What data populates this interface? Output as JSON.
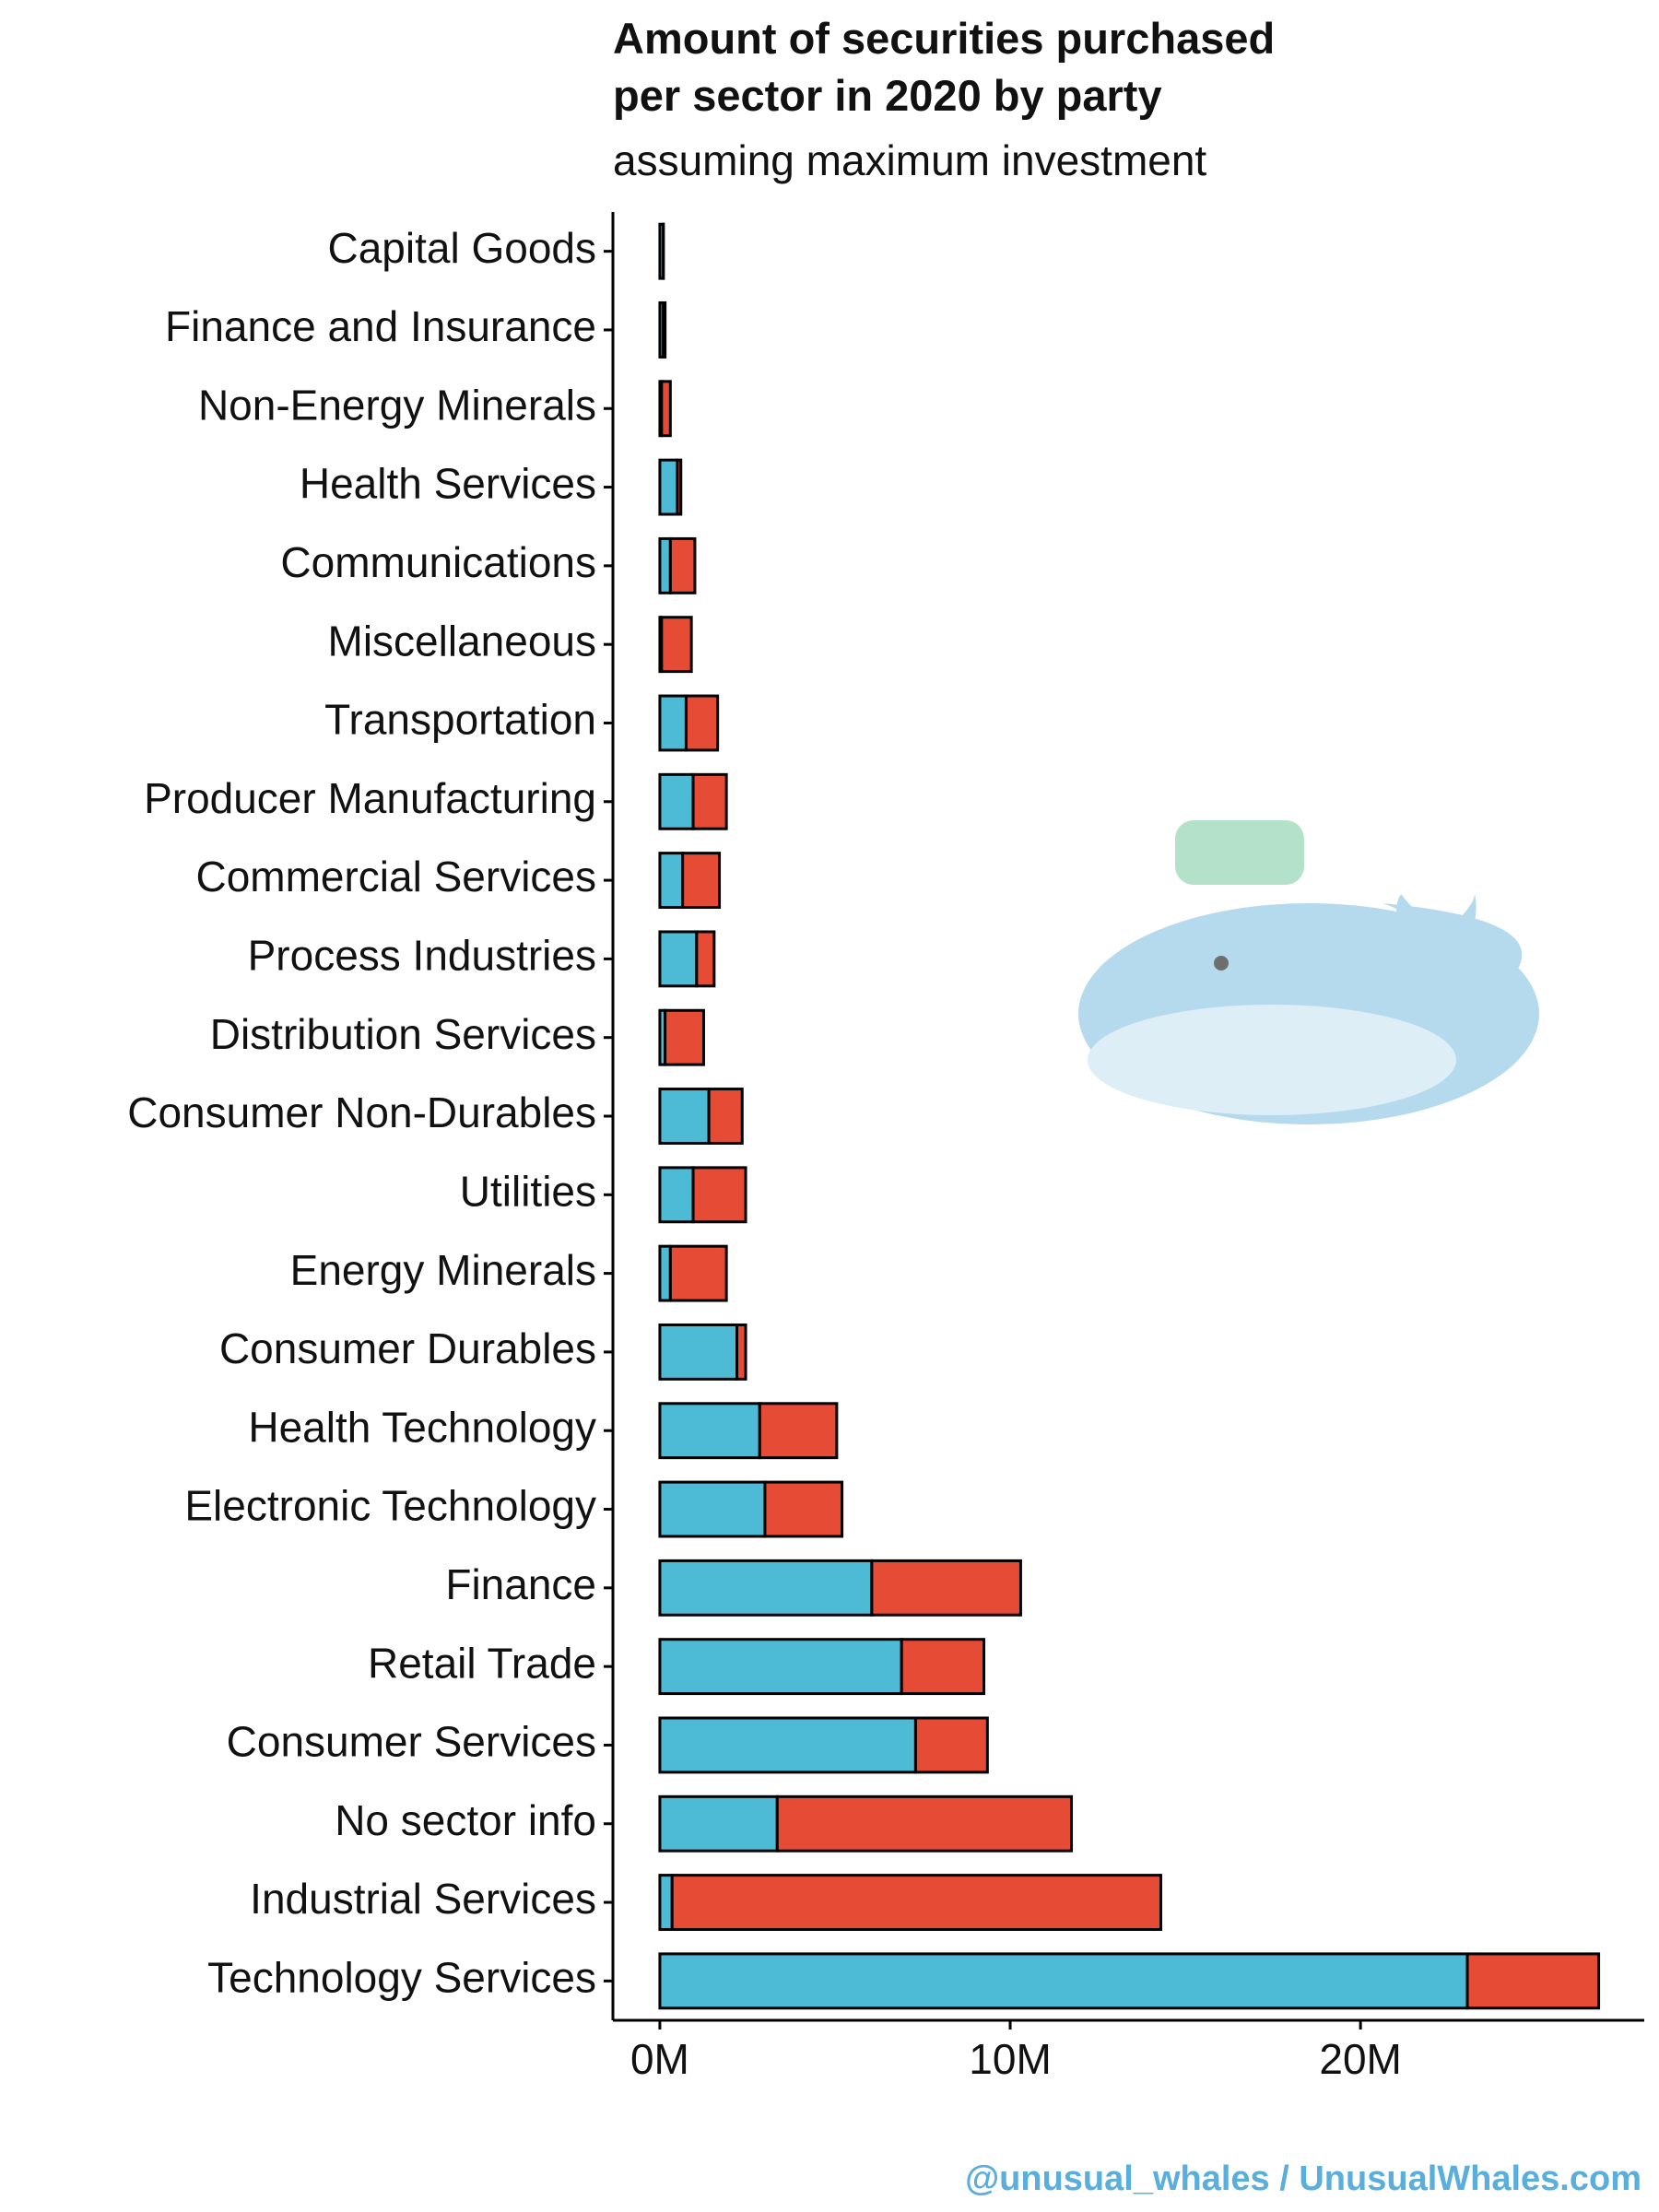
{
  "chart_data": {
    "type": "bar",
    "orientation": "horizontal",
    "stacked": true,
    "title": "Amount of securities purchased\nper sector in 2020 by party",
    "subtitle": "assuming maximum investment",
    "footer": "@unusual_whales / UnusualWhales.com",
    "categories": [
      "Capital Goods",
      "Finance and Insurance",
      "Non-Energy Minerals",
      "Health Services",
      "Communications",
      "Miscellaneous",
      "Transportation",
      "Producer Manufacturing",
      "Commercial Services",
      "Process Industries",
      "Distribution Services",
      "Consumer Non-Durables",
      "Utilities",
      "Energy Minerals",
      "Consumer Durables",
      "Health Technology",
      "Electronic Technology",
      "Finance",
      "Retail Trade",
      "Consumer Services",
      "No sector info",
      "Industrial Services",
      "Technology Services"
    ],
    "series": [
      {
        "color": "#4dbbd5",
        "values": [
          0.1,
          0.1,
          0.05,
          0.5,
          0.3,
          0.05,
          0.75,
          0.95,
          0.65,
          1.05,
          0.15,
          1.4,
          0.95,
          0.3,
          2.2,
          2.85,
          3.0,
          6.05,
          6.9,
          7.3,
          3.35,
          0.35,
          23.05
        ]
      },
      {
        "color": "#e64b35",
        "values": [
          0,
          0.05,
          0.25,
          0.1,
          0.7,
          0.85,
          0.9,
          0.95,
          1.05,
          0.5,
          1.1,
          0.95,
          1.5,
          1.6,
          0.25,
          2.2,
          2.2,
          4.25,
          2.35,
          2.05,
          8.4,
          13.95,
          3.75
        ]
      }
    ],
    "xlim": [
      -1.34,
      28.1
    ],
    "xticks": [
      {
        "value": 0,
        "label": "0M"
      },
      {
        "value": 10,
        "label": "10M"
      },
      {
        "value": 20,
        "label": "20M"
      }
    ]
  }
}
